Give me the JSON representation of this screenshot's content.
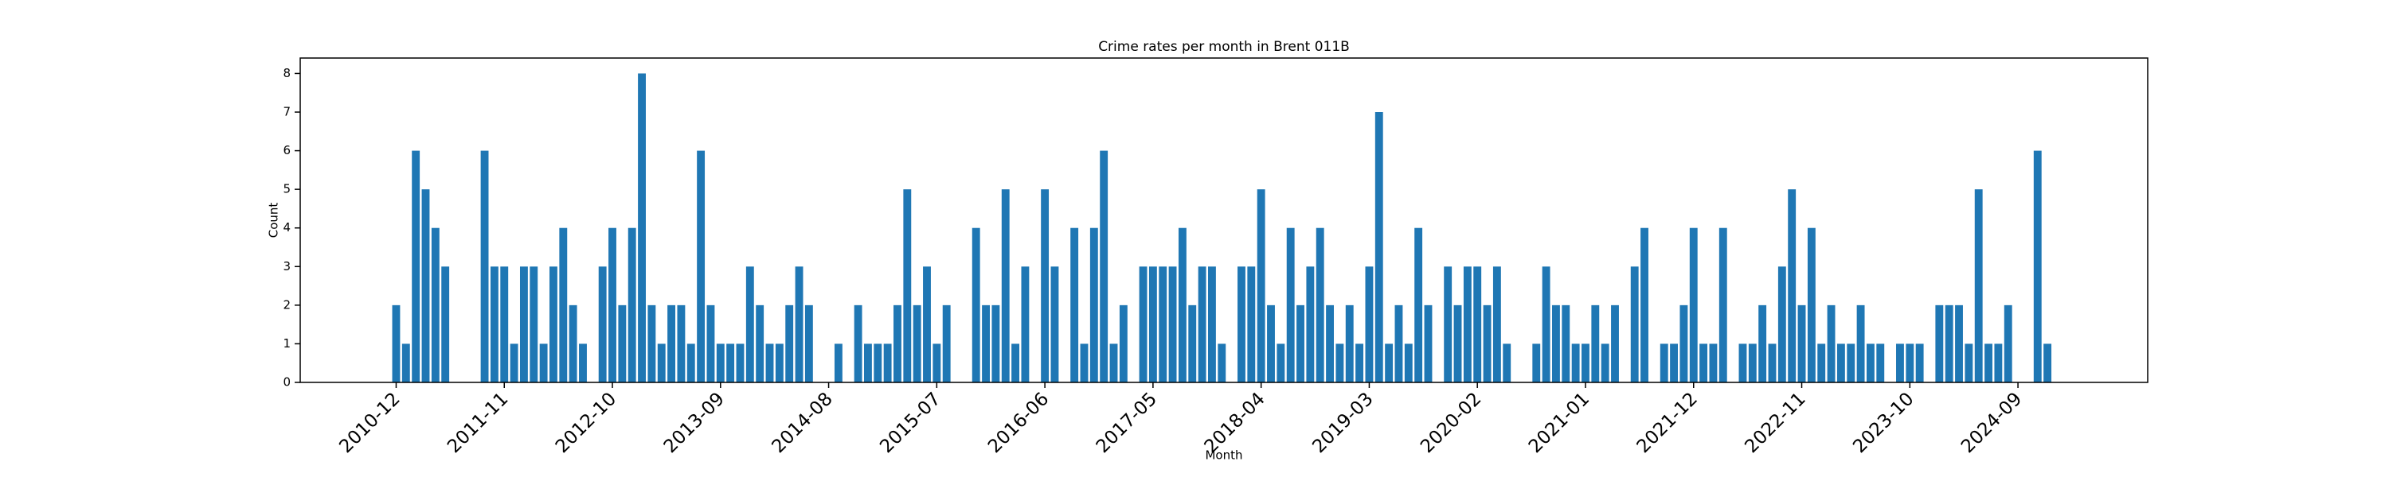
{
  "chart_data": {
    "type": "bar",
    "title": "Crime rates per month in Brent 011B",
    "xlabel": "Month",
    "ylabel": "Count",
    "color": "#1f77b4",
    "categories": [
      "2010-12",
      null,
      null,
      null,
      null,
      null,
      null,
      null,
      null,
      null,
      null,
      "2011-11",
      null,
      null,
      null,
      null,
      null,
      null,
      null,
      null,
      null,
      null,
      "2012-10",
      null,
      null,
      null,
      null,
      null,
      null,
      null,
      null,
      null,
      null,
      "2013-09",
      null,
      null,
      null,
      null,
      null,
      null,
      null,
      null,
      null,
      null,
      "2014-08",
      null,
      null,
      null,
      null,
      null,
      null,
      null,
      null,
      null,
      null,
      "2015-07",
      null,
      null,
      null,
      null,
      null,
      null,
      null,
      null,
      null,
      null,
      "2016-06",
      null,
      null,
      null,
      null,
      null,
      null,
      null,
      null,
      null,
      null,
      "2017-05",
      null,
      null,
      null,
      null,
      null,
      null,
      null,
      null,
      null,
      null,
      "2018-04",
      null,
      null,
      null,
      null,
      null,
      null,
      null,
      null,
      null,
      null,
      "2019-03",
      null,
      null,
      null,
      null,
      null,
      null,
      null,
      null,
      null,
      null,
      "2020-02",
      null,
      null,
      null,
      null,
      null,
      null,
      null,
      null,
      null,
      null,
      "2021-01",
      null,
      null,
      null,
      null,
      null,
      null,
      null,
      null,
      null,
      null,
      "2021-12",
      null,
      null,
      null,
      null,
      null,
      null,
      null,
      null,
      null,
      null,
      "2022-11",
      null,
      null,
      null,
      null,
      null,
      null,
      null,
      null,
      null,
      null,
      "2023-10",
      null,
      null,
      null,
      null,
      null,
      null,
      null,
      null,
      null,
      null,
      "2024-09",
      null,
      null,
      null
    ],
    "values": [
      2,
      1,
      6,
      5,
      4,
      3,
      0,
      0,
      0,
      6,
      3,
      3,
      1,
      3,
      3,
      1,
      3,
      4,
      2,
      1,
      0,
      3,
      4,
      2,
      4,
      8,
      2,
      1,
      2,
      2,
      1,
      6,
      2,
      1,
      1,
      1,
      3,
      2,
      1,
      1,
      2,
      3,
      2,
      0,
      0,
      1,
      0,
      2,
      1,
      1,
      1,
      2,
      5,
      2,
      3,
      1,
      2,
      0,
      0,
      4,
      2,
      2,
      5,
      1,
      3,
      0,
      5,
      3,
      0,
      4,
      1,
      4,
      6,
      1,
      2,
      0,
      3,
      3,
      3,
      3,
      4,
      2,
      3,
      3,
      1,
      0,
      3,
      3,
      5,
      2,
      1,
      4,
      2,
      3,
      4,
      2,
      1,
      2,
      1,
      3,
      7,
      1,
      2,
      1,
      4,
      2,
      0,
      3,
      2,
      3,
      3,
      2,
      3,
      1,
      0,
      0,
      1,
      3,
      2,
      2,
      1,
      1,
      2,
      1,
      2,
      0,
      3,
      4,
      0,
      1,
      1,
      2,
      4,
      1,
      1,
      4,
      0,
      1,
      1,
      2,
      1,
      3,
      5,
      2,
      4,
      1,
      2,
      1,
      1,
      2,
      1,
      1,
      0,
      1,
      1,
      1,
      0,
      2,
      2,
      2,
      1,
      5,
      1,
      1,
      2,
      0,
      0,
      6,
      1
    ],
    "ylim": [
      0,
      8.4
    ],
    "yticks": [
      0,
      1,
      2,
      3,
      4,
      5,
      6,
      7,
      8
    ]
  }
}
